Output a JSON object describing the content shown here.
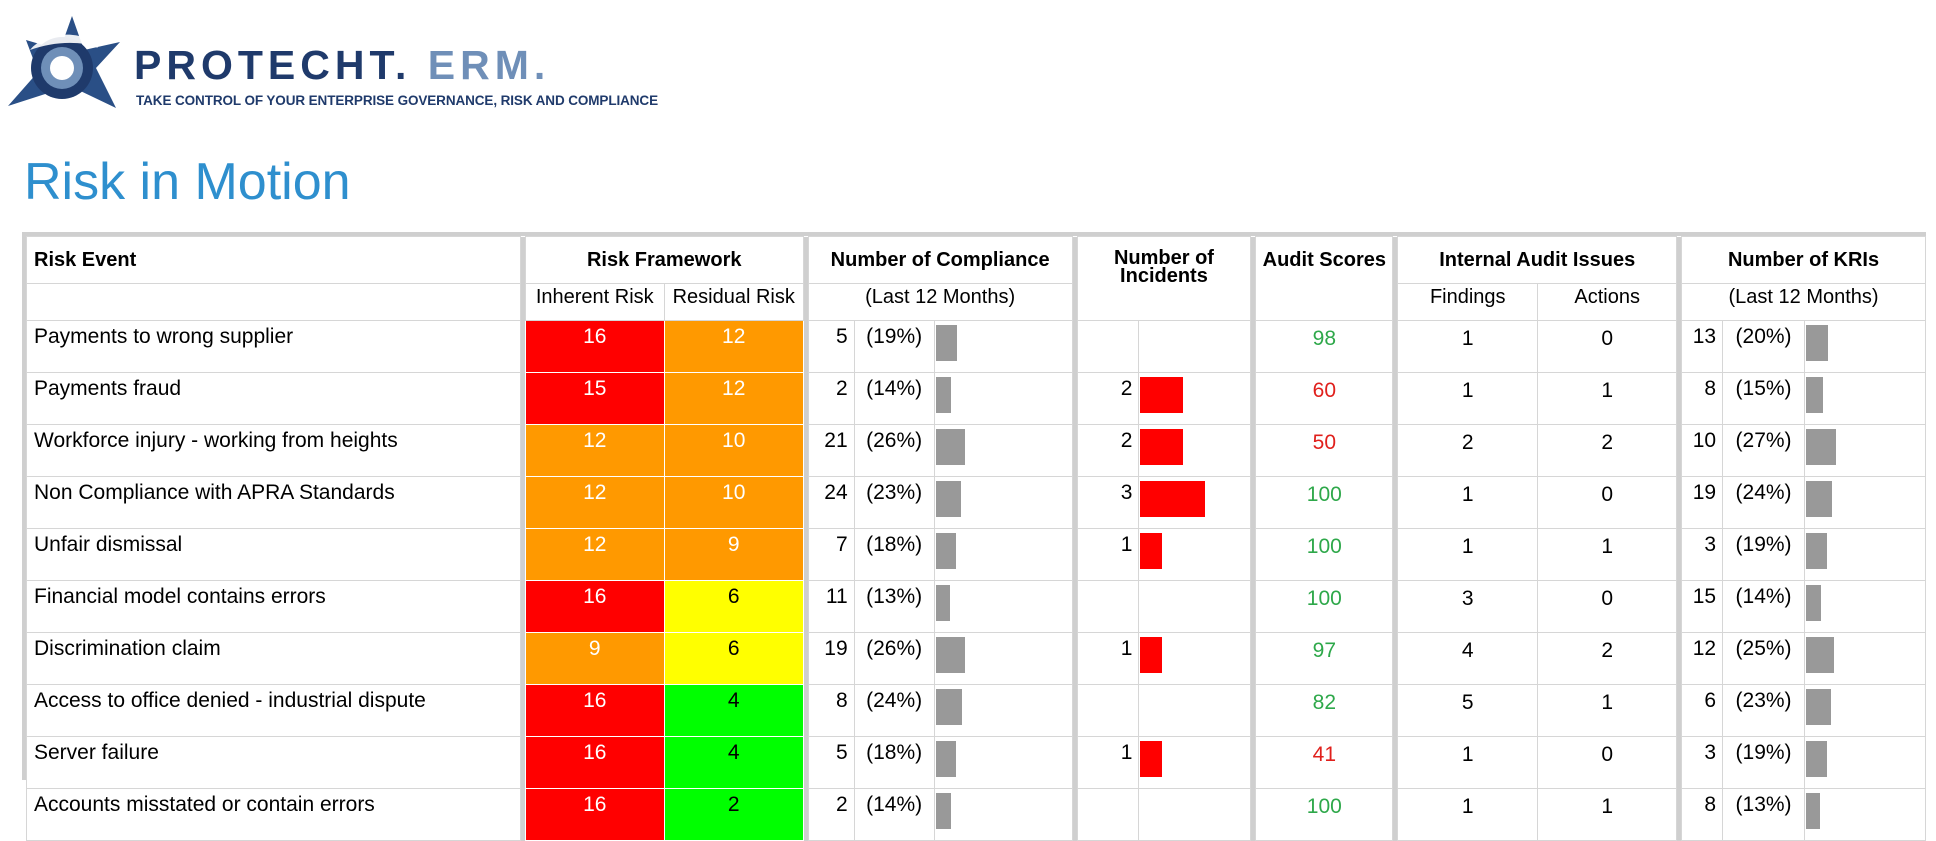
{
  "brand": {
    "name_main": "PROTECHT.",
    "name_suffix": "ERM.",
    "tagline": "TAKE CONTROL OF YOUR ENTERPRISE GOVERNANCE, RISK AND COMPLIANCE"
  },
  "title": "Risk in Motion",
  "colors": {
    "red": "#ff0000",
    "orange": "#ff9900",
    "yellow": "#ffff00",
    "green": "#00ff00",
    "score_good": "#2ea84a",
    "score_bad": "#e0201c",
    "bar_grey": "#999999",
    "title_blue": "#2e8fce"
  },
  "headers": {
    "risk_event": "Risk Event",
    "risk_framework": "Risk Framework",
    "inherent": "Inherent Risk",
    "residual": "Residual Risk",
    "compliance": "Number of Compliance",
    "compliance_sub": "(Last 12 Months)",
    "incidents": "Number of Incidents",
    "audit_scores": "Audit Scores",
    "audit_issues": "Internal Audit Issues",
    "findings": "Findings",
    "actions": "Actions",
    "kris": "Number of KRIs",
    "kris_sub": "(Last 12 Months)"
  },
  "rows": [
    {
      "event": "Payments to wrong supplier",
      "inherent": "16",
      "inherent_level": "red",
      "residual": "12",
      "residual_level": "orange",
      "comp_n": "5",
      "comp_pct": "(19%)",
      "comp_frac": 0.19,
      "inc_n": "",
      "inc_frac": 0,
      "score": "98",
      "score_good": true,
      "findings": "1",
      "actions": "0",
      "kri_n": "13",
      "kri_pct": "(20%)",
      "kri_frac": 0.2
    },
    {
      "event": "Payments fraud",
      "inherent": "15",
      "inherent_level": "red",
      "residual": "12",
      "residual_level": "orange",
      "comp_n": "2",
      "comp_pct": "(14%)",
      "comp_frac": 0.14,
      "inc_n": "2",
      "inc_frac": 0.6,
      "score": "60",
      "score_good": false,
      "findings": "1",
      "actions": "1",
      "kri_n": "8",
      "kri_pct": "(15%)",
      "kri_frac": 0.15
    },
    {
      "event": "Workforce injury - working from heights",
      "inherent": "12",
      "inherent_level": "orange",
      "residual": "10",
      "residual_level": "orange",
      "comp_n": "21",
      "comp_pct": "(26%)",
      "comp_frac": 0.26,
      "inc_n": "2",
      "inc_frac": 0.6,
      "score": "50",
      "score_good": false,
      "findings": "2",
      "actions": "2",
      "kri_n": "10",
      "kri_pct": "(27%)",
      "kri_frac": 0.27
    },
    {
      "event": "Non Compliance with APRA Standards",
      "inherent": "12",
      "inherent_level": "orange",
      "residual": "10",
      "residual_level": "orange",
      "comp_n": "24",
      "comp_pct": "(23%)",
      "comp_frac": 0.23,
      "inc_n": "3",
      "inc_frac": 0.9,
      "score": "100",
      "score_good": true,
      "findings": "1",
      "actions": "0",
      "kri_n": "19",
      "kri_pct": "(24%)",
      "kri_frac": 0.24
    },
    {
      "event": "Unfair dismissal",
      "inherent": "12",
      "inherent_level": "orange",
      "residual": "9",
      "residual_level": "orange",
      "comp_n": "7",
      "comp_pct": "(18%)",
      "comp_frac": 0.18,
      "inc_n": "1",
      "inc_frac": 0.3,
      "score": "100",
      "score_good": true,
      "findings": "1",
      "actions": "1",
      "kri_n": "3",
      "kri_pct": "(19%)",
      "kri_frac": 0.19
    },
    {
      "event": "Financial model contains errors",
      "inherent": "16",
      "inherent_level": "red",
      "residual": "6",
      "residual_level": "yellow",
      "comp_n": "11",
      "comp_pct": "(13%)",
      "comp_frac": 0.13,
      "inc_n": "",
      "inc_frac": 0,
      "score": "100",
      "score_good": true,
      "findings": "3",
      "actions": "0",
      "kri_n": "15",
      "kri_pct": "(14%)",
      "kri_frac": 0.14
    },
    {
      "event": "Discrimination claim",
      "inherent": "9",
      "inherent_level": "orange",
      "residual": "6",
      "residual_level": "yellow",
      "comp_n": "19",
      "comp_pct": "(26%)",
      "comp_frac": 0.26,
      "inc_n": "1",
      "inc_frac": 0.3,
      "score": "97",
      "score_good": true,
      "findings": "4",
      "actions": "2",
      "kri_n": "12",
      "kri_pct": "(25%)",
      "kri_frac": 0.25
    },
    {
      "event": "Access to office denied - industrial dispute",
      "inherent": "16",
      "inherent_level": "red",
      "residual": "4",
      "residual_level": "green",
      "comp_n": "8",
      "comp_pct": "(24%)",
      "comp_frac": 0.24,
      "inc_n": "",
      "inc_frac": 0,
      "score": "82",
      "score_good": true,
      "findings": "5",
      "actions": "1",
      "kri_n": "6",
      "kri_pct": "(23%)",
      "kri_frac": 0.23
    },
    {
      "event": "Server failure",
      "inherent": "16",
      "inherent_level": "red",
      "residual": "4",
      "residual_level": "green",
      "comp_n": "5",
      "comp_pct": "(18%)",
      "comp_frac": 0.18,
      "inc_n": "1",
      "inc_frac": 0.3,
      "score": "41",
      "score_good": false,
      "findings": "1",
      "actions": "0",
      "kri_n": "3",
      "kri_pct": "(19%)",
      "kri_frac": 0.19
    },
    {
      "event": "Accounts misstated or contain errors",
      "inherent": "16",
      "inherent_level": "red",
      "residual": "2",
      "residual_level": "green",
      "comp_n": "2",
      "comp_pct": "(14%)",
      "comp_frac": 0.14,
      "inc_n": "",
      "inc_frac": 0,
      "score": "100",
      "score_good": true,
      "findings": "1",
      "actions": "1",
      "kri_n": "8",
      "kri_pct": "(13%)",
      "kri_frac": 0.13
    }
  ]
}
